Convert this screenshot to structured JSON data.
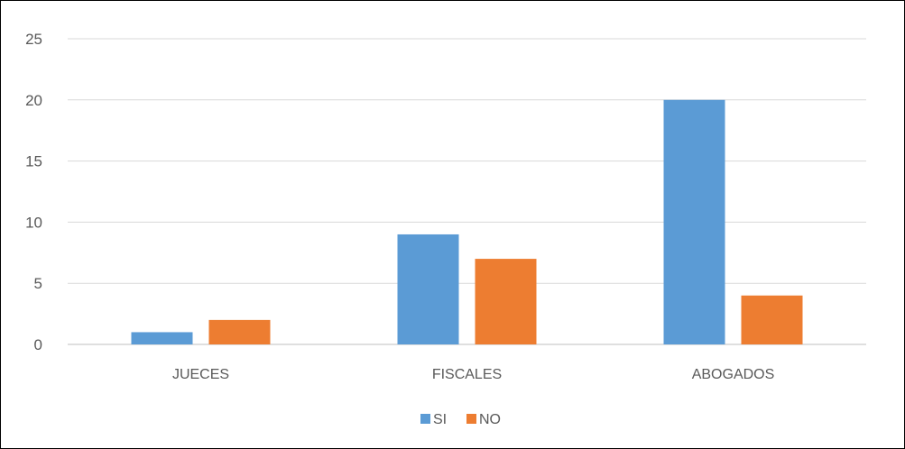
{
  "chart_data": {
    "type": "bar",
    "categories": [
      "JUECES",
      "FISCALES",
      "ABOGADOS"
    ],
    "series": [
      {
        "name": "SI",
        "color": "#5B9BD5",
        "values": [
          1,
          9,
          20
        ]
      },
      {
        "name": "NO",
        "color": "#ED7D31",
        "values": [
          2,
          7,
          4
        ]
      }
    ],
    "title": "",
    "xlabel": "",
    "ylabel": "",
    "ylim": [
      0,
      25
    ],
    "yticks": [
      0,
      5,
      10,
      15,
      20,
      25
    ],
    "grid": true,
    "legend": "bottom"
  }
}
